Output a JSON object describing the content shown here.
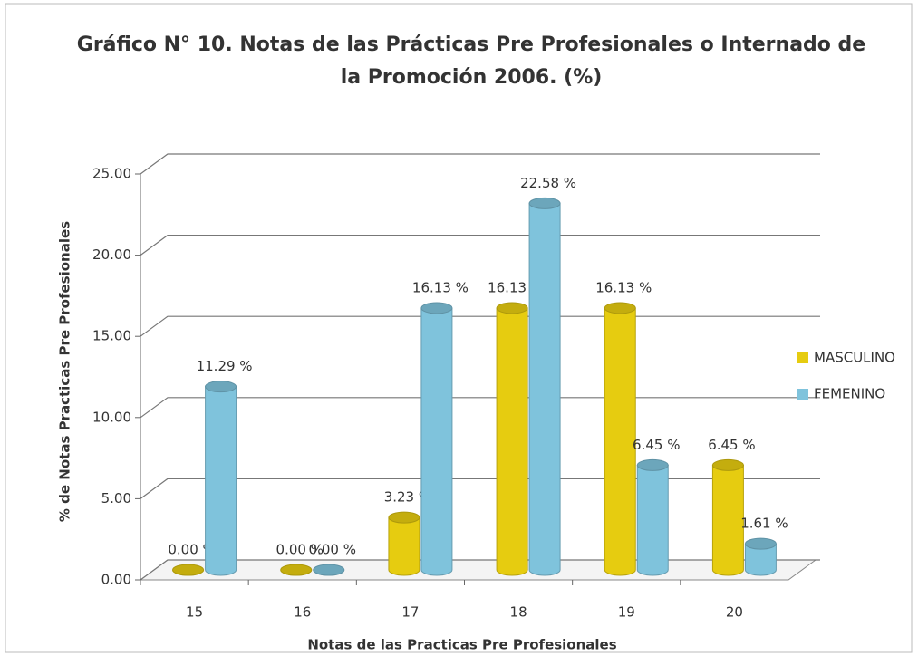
{
  "chart_data": {
    "type": "bar3d",
    "title": [
      "Gráfico N° 10. Notas de las Prácticas Pre Profesionales o Internado de",
      "la Promoción 2006. (%)"
    ],
    "x_label": "Notas de las Practicas Pre Profesionales",
    "y_label": "% de Notas Practicas Pre Profesionales",
    "categories": [
      "15",
      "16",
      "17",
      "18",
      "19",
      "20"
    ],
    "series": [
      {
        "name": "MASCULINO",
        "color": "#e6cc10",
        "values": [
          0.0,
          0.0,
          3.23,
          16.13,
          16.13,
          6.45
        ],
        "value_labels": [
          "0.00 %",
          "0.00 %",
          "3.23 %",
          "16.13 %",
          "16.13 %",
          "6.45 %"
        ]
      },
      {
        "name": "FEMENINO",
        "color": "#7fc3dc",
        "values": [
          11.29,
          0.0,
          16.13,
          22.58,
          6.45,
          1.61
        ],
        "value_labels": [
          "11.29 %",
          "0.00 %",
          "16.13 %",
          "22.58 %",
          "6.45 %",
          "1.61 %"
        ]
      }
    ],
    "ylim": [
      0,
      25
    ],
    "yticks": [
      {
        "value": 0,
        "label": "0.00"
      },
      {
        "value": 5,
        "label": "5.00"
      },
      {
        "value": 10,
        "label": "10.00"
      },
      {
        "value": 15,
        "label": "15.00"
      },
      {
        "value": 20,
        "label": "20.00"
      },
      {
        "value": 25,
        "label": "25.00"
      }
    ],
    "grid": true,
    "legend": "right"
  }
}
